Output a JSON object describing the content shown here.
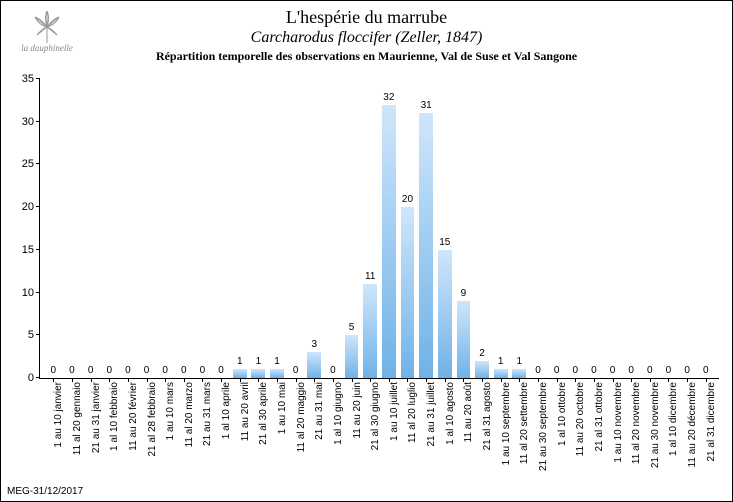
{
  "logo_text": "la dauphinelle",
  "header": {
    "title": "L'hespérie du marrube",
    "subtitle": "Carcharodus floccifer (Zeller, 1847)",
    "subtitle2": "Répartition temporelle des observations en Maurienne, Val de Suse et Val Sangone"
  },
  "footer": "MEG-31/12/2017",
  "chart": {
    "type": "bar",
    "ylim": [
      0,
      35
    ],
    "ytick_step": 5,
    "yticks": [
      0,
      5,
      10,
      15,
      20,
      25,
      30,
      35
    ],
    "bar_gradient": [
      "#cfe6fb",
      "#6fb2e8"
    ],
    "background_color": "#ffffff",
    "axis_color": "#000000",
    "value_fontsize": 10,
    "label_fontsize": 10,
    "tick_fontsize": 11,
    "categories": [
      "1 au 10 janvier",
      "11 al 20 gennaio",
      "21 au 31 janvier",
      "1 al 10 febbraio",
      "11 au 20 février",
      "21 al 28 febbraio",
      "1 au 10 mars",
      "11 al 20 marzo",
      "21 au 31 mars",
      "1 al 10 aprile",
      "11 au 20 avril",
      "21 al 30 aprile",
      "1 au 10 mai",
      "11 al 20 maggio",
      "21 au 31 mai",
      "1 al 10 giugno",
      "11 au 20 juin",
      "21 al 30 giugno",
      "1 au 10 juillet",
      "11 al 20 luglio",
      "21 au 31 juillet",
      "1 al 10 agosto",
      "11 au 20 août",
      "21 al 31 agosto",
      "1 au 10 septembre",
      "11 al 20 settembre",
      "21 au 30 septembre",
      "1 al 10 ottobre",
      "11 au 20 octobre",
      "21 al 31 ottobre",
      "1 au 10 novembre",
      "11 al 20 novembre",
      "21 au 30 novembre",
      "1 al 10 dicembre",
      "11 au 20 décembre",
      "21 al 31 dicembre"
    ],
    "values": [
      0,
      0,
      0,
      0,
      0,
      0,
      0,
      0,
      0,
      0,
      1,
      1,
      1,
      0,
      3,
      0,
      5,
      11,
      32,
      20,
      31,
      15,
      9,
      2,
      1,
      1,
      0,
      0,
      0,
      0,
      0,
      0,
      0,
      0,
      0,
      0
    ]
  }
}
